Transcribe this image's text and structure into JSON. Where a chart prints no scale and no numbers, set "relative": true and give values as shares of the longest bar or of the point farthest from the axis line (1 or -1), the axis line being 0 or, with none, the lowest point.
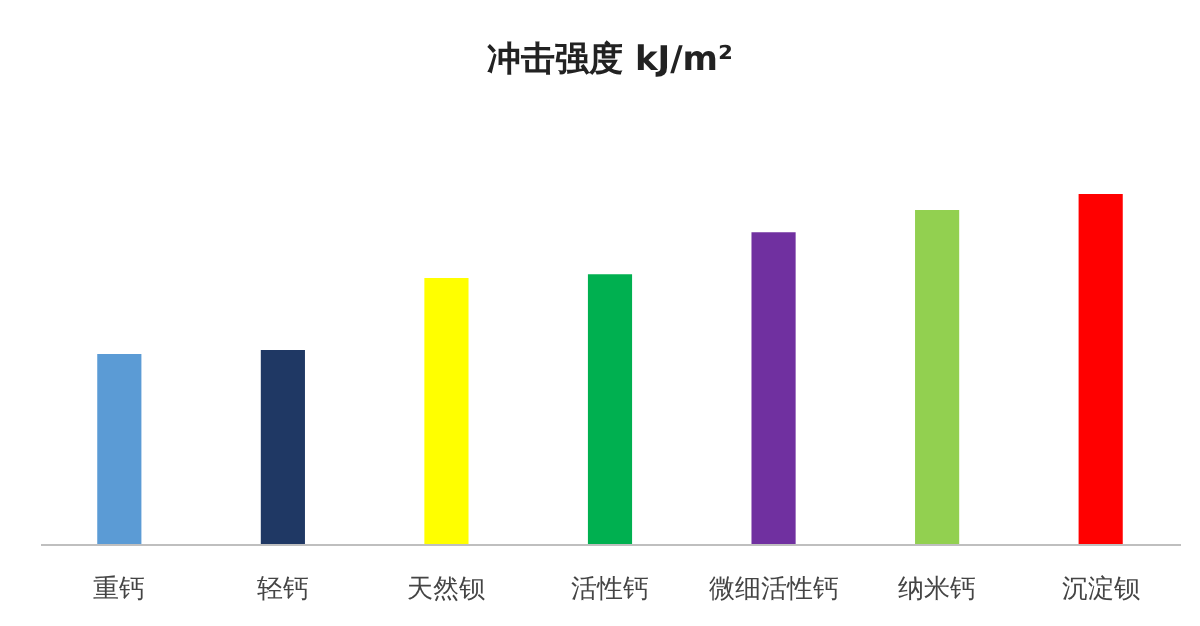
{
  "chart_data": {
    "type": "bar",
    "title": "冲击强度 kJ/m²",
    "relative": true,
    "grid": false,
    "legend": false,
    "categories": [
      "重钙",
      "轻钙",
      "天然钡",
      "活性钙",
      "微细活性钙",
      "纳米钙",
      "沉淀钡"
    ],
    "values": [
      0.543,
      0.554,
      0.76,
      0.771,
      0.891,
      0.954,
      1
    ],
    "colors": [
      "#5b9bd5",
      "#1f3864",
      "#ffff00",
      "#00b050",
      "#7030a0",
      "#92d050",
      "#ff0000"
    ]
  }
}
